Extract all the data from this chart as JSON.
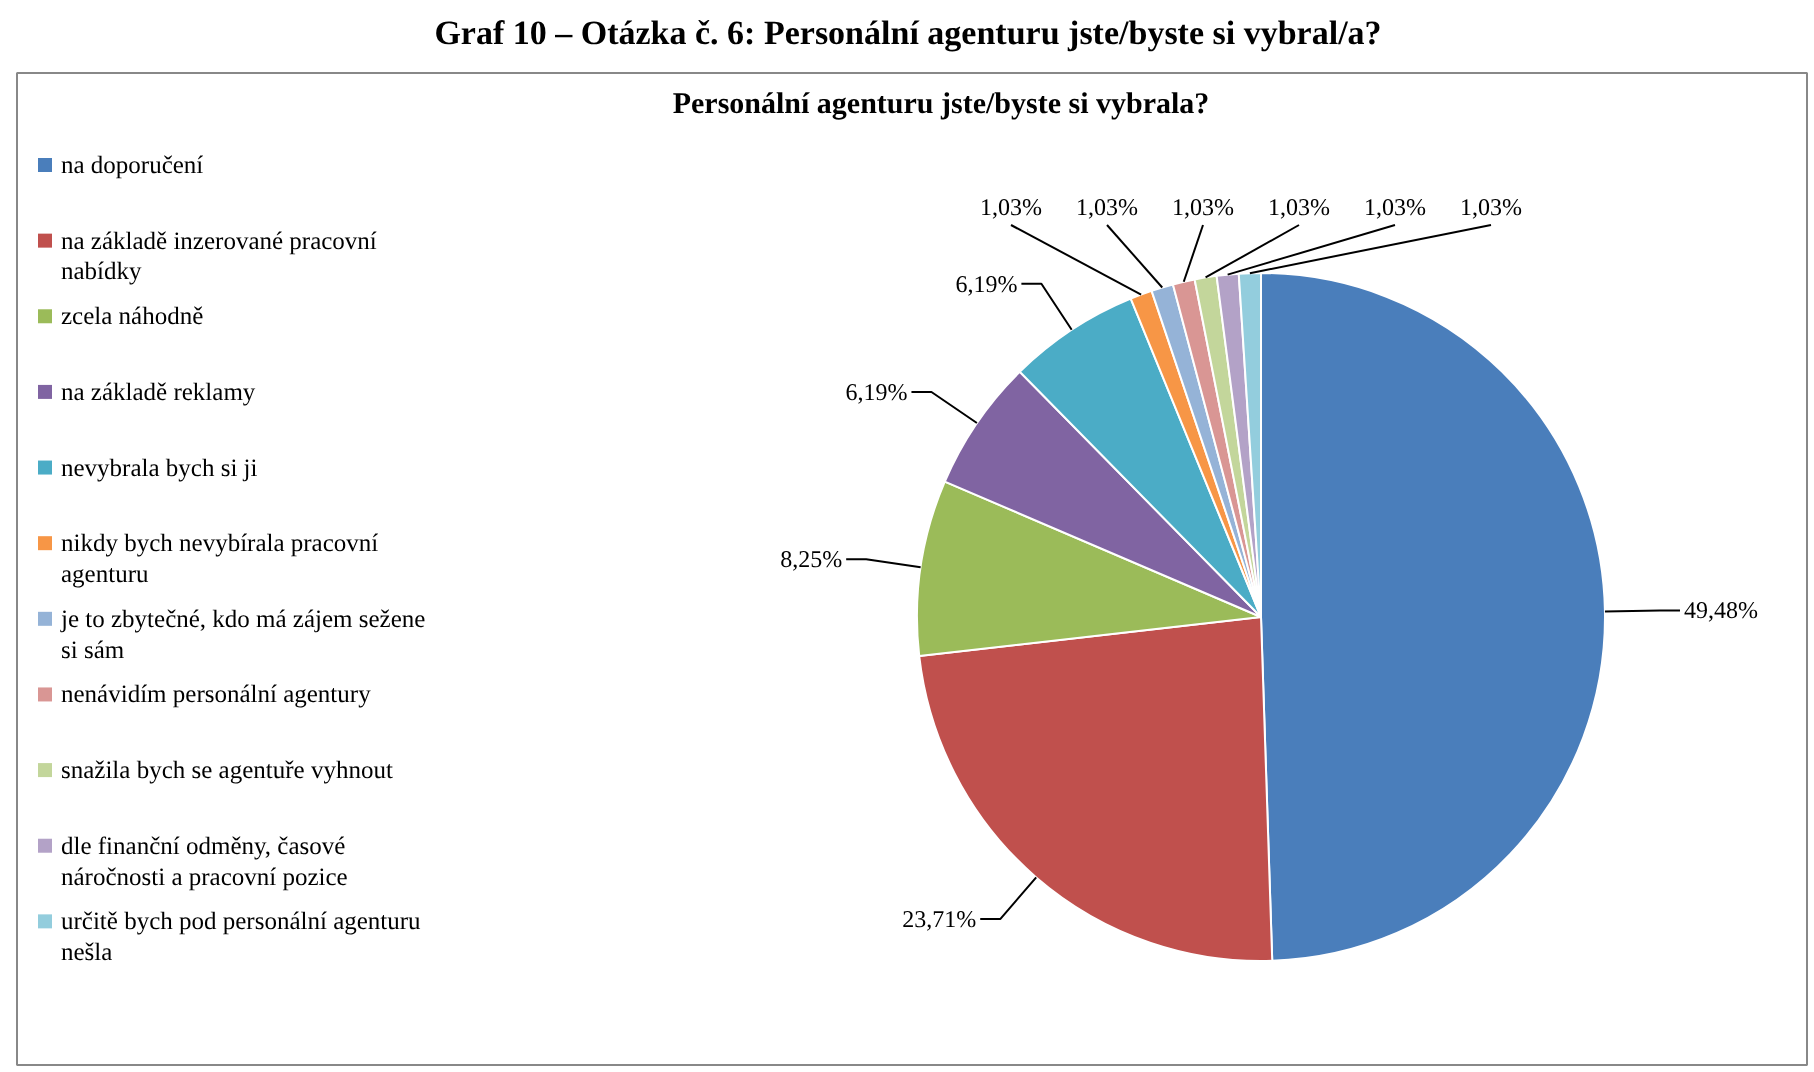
{
  "chart_data": {
    "type": "pie",
    "title": "Graf 10 – Otázka č. 6: Personální agenturu jste/byste si vybral/a?",
    "subtitle": "Personální agenturu jste/byste si vybrala?",
    "categories": [
      "na doporučení",
      "na základě inzerované pracovní nabídky",
      "zcela náhodně",
      "na základě reklamy",
      "nevybrala bych si ji",
      "nikdy bych nevybírala pracovní agenturu",
      "je to zbytečné, kdo má zájem sežene si sám",
      "nenávidím personální agentury",
      "snažila bych se agentuře vyhnout",
      "dle finanční odměny, časové náročnosti a pracovní pozice",
      "určitě bych pod personální agenturu nešla"
    ],
    "values": [
      49.48,
      23.71,
      8.25,
      6.19,
      6.19,
      1.03,
      1.03,
      1.03,
      1.03,
      1.03,
      1.03
    ],
    "value_labels": [
      "49,48%",
      "23,71%",
      "8,25%",
      "6,19%",
      "6,19%",
      "1,03%",
      "1,03%",
      "1,03%",
      "1,03%",
      "1,03%",
      "1,03%"
    ],
    "colors": [
      "#4a7ebb",
      "#c0504d",
      "#9bbb59",
      "#8064a2",
      "#4bacc6",
      "#f79646",
      "#95b3d7",
      "#d99694",
      "#c3d69b",
      "#b3a2c7",
      "#93cddd"
    ],
    "legend": "left"
  }
}
